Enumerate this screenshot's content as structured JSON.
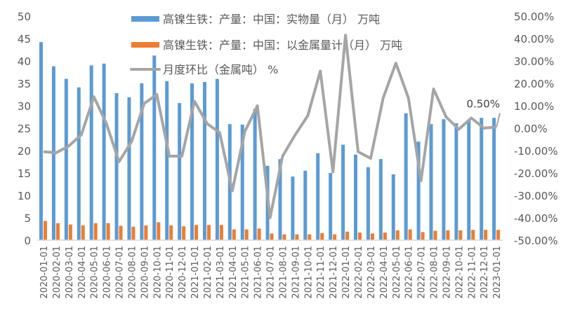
{
  "chart_data": {
    "type": "bar+line",
    "title": "",
    "categories": [
      "2020-01-01",
      "2020-02-01",
      "2020-03-01",
      "2020-04-01",
      "2020-05-01",
      "2020-06-01",
      "2020-07-01",
      "2020-08-01",
      "2020-09-01",
      "2020-10-01",
      "2020-11-01",
      "2020-12-01",
      "2021-01-01",
      "2021-02-01",
      "2021-03-01",
      "2021-04-01",
      "2021-05-01",
      "2021-06-01",
      "2021-07-01",
      "2021-08-01",
      "2021-09-01",
      "2021-10-01",
      "2021-11-01",
      "2021-12-01",
      "2022-01-01",
      "2022-02-01",
      "2022-03-01",
      "2022-04-01",
      "2022-05-01",
      "2022-06-01",
      "2022-07-01",
      "2022-08-01",
      "2022-09-01",
      "2022-10-01",
      "2022-11-01",
      "2022-12-01",
      "2023-01-01"
    ],
    "series": [
      {
        "name": "高镍生铁：产量：中国：实物量（月） 万吨",
        "type": "bar",
        "axis": "left",
        "color": "#5B9BD5",
        "values": [
          44.2,
          38.8,
          36.0,
          34.1,
          39.0,
          39.4,
          32.8,
          31.9,
          35.0,
          41.2,
          35.5,
          30.6,
          35.0,
          35.3,
          36.0,
          25.9,
          25.8,
          29.3,
          16.6,
          18.1,
          14.2,
          15.5,
          19.4,
          15.0,
          21.3,
          19.1,
          16.3,
          18.1,
          14.7,
          28.3,
          22.0,
          25.9,
          27.0,
          26.1,
          26.9,
          27.3,
          27.3
        ]
      },
      {
        "name": "高镍生铁：产量：中国：以金属量计（月） 万吨",
        "type": "bar",
        "axis": "left",
        "color": "#ED7D31",
        "values": [
          4.3,
          3.8,
          3.5,
          3.3,
          3.8,
          3.8,
          3.2,
          3.0,
          3.3,
          4.0,
          3.3,
          3.1,
          3.4,
          3.4,
          3.4,
          2.4,
          2.4,
          2.6,
          1.5,
          1.3,
          1.3,
          1.3,
          1.6,
          1.3,
          1.9,
          1.7,
          1.5,
          1.7,
          2.2,
          2.4,
          1.8,
          2.1,
          2.2,
          2.2,
          2.3,
          2.3,
          2.3
        ]
      },
      {
        "name": "月度环比（金属吨） %",
        "type": "line",
        "axis": "right",
        "color": "#A5A5A5",
        "values": [
          -10.5,
          -11.0,
          -8.0,
          -3.0,
          14.0,
          2.0,
          -15.0,
          -6.0,
          11.0,
          15.0,
          -12.5,
          -12.5,
          12.0,
          2.0,
          -2.0,
          -28.0,
          -1.5,
          10.0,
          -40.0,
          -12.5,
          -3.0,
          5.5,
          25.5,
          -19.5,
          41.5,
          -10.5,
          -13.5,
          13.5,
          29.0,
          13.5,
          -23.5,
          17.5,
          5.0,
          -0.5,
          4.5,
          0.0,
          0.5
        ]
      }
    ],
    "left_axis": {
      "min": 0,
      "max": 50,
      "step": 5,
      "ticks": [
        "0",
        "5",
        "10",
        "15",
        "20",
        "25",
        "30",
        "35",
        "40",
        "45",
        "50"
      ]
    },
    "right_axis": {
      "min": -50,
      "max": 50,
      "step": 10,
      "ticks": [
        "-50.00%",
        "-40.00%",
        "-30.00%",
        "-20.00%",
        "-10.00%",
        "0.00%",
        "10.00%",
        "20.00%",
        "30.00%",
        "40.00%",
        "50.00%"
      ]
    },
    "annotations": [
      {
        "category": "2023-01-01",
        "series": 2,
        "text": "0.50%"
      }
    ],
    "legend_position": "top-inside",
    "grid": false,
    "xlabel": "",
    "ylabel": "",
    "ylim": [
      0,
      50
    ],
    "y2lim": [
      -50,
      50
    ]
  }
}
